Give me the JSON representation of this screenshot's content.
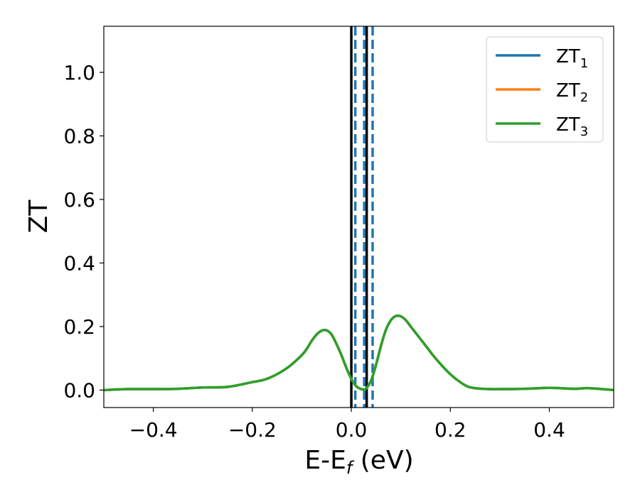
{
  "chart_data": {
    "type": "line",
    "xlabel": "E-E_f (eV)",
    "xlabel_parts": {
      "main": "E-E",
      "sub": "f",
      "tail": " (eV)"
    },
    "ylabel": "ZT",
    "xlim": [
      -0.5,
      0.53
    ],
    "ylim": [
      -0.055,
      1.145
    ],
    "xticks": [
      -0.4,
      -0.2,
      0.0,
      0.2,
      0.4
    ],
    "xtick_labels": [
      "−0.4",
      "−0.2",
      "0.0",
      "0.2",
      "0.4"
    ],
    "yticks": [
      0.0,
      0.2,
      0.4,
      0.6,
      0.8,
      1.0
    ],
    "ytick_labels": [
      "0.0",
      "0.2",
      "0.4",
      "0.6",
      "0.8",
      "1.0"
    ],
    "grid": false,
    "legend_position": "top-right",
    "series": [
      {
        "name": "ZT_1",
        "label_main": "ZT",
        "label_sub": "1",
        "color": "#1f77b4",
        "x": [
          -0.5,
          -0.45,
          -0.4,
          -0.35,
          -0.3,
          -0.25,
          -0.2,
          -0.175,
          -0.15,
          -0.125,
          -0.1,
          -0.09,
          -0.08,
          -0.07,
          -0.06,
          -0.05,
          -0.04,
          -0.03,
          -0.02,
          -0.01,
          0.0,
          0.01,
          0.02,
          0.025,
          0.03,
          0.04,
          0.05,
          0.06,
          0.07,
          0.08,
          0.09,
          0.1,
          0.11,
          0.12,
          0.13,
          0.15,
          0.17,
          0.2,
          0.23,
          0.25,
          0.28,
          0.3,
          0.35,
          0.4,
          0.45,
          0.48,
          0.53
        ],
        "y": [
          0.0,
          0.003,
          0.003,
          0.004,
          0.008,
          0.01,
          0.025,
          0.033,
          0.05,
          0.075,
          0.11,
          0.13,
          0.155,
          0.175,
          0.187,
          0.188,
          0.175,
          0.145,
          0.11,
          0.07,
          0.035,
          0.012,
          0.003,
          0.002,
          0.005,
          0.03,
          0.08,
          0.14,
          0.19,
          0.22,
          0.233,
          0.232,
          0.22,
          0.2,
          0.18,
          0.14,
          0.1,
          0.05,
          0.015,
          0.006,
          0.003,
          0.003,
          0.004,
          0.007,
          0.004,
          0.006,
          0.0
        ]
      },
      {
        "name": "ZT_2",
        "label_main": "ZT",
        "label_sub": "2",
        "color": "#ff7f0e",
        "x": [
          -0.5,
          -0.45,
          -0.4,
          -0.35,
          -0.3,
          -0.25,
          -0.2,
          -0.175,
          -0.15,
          -0.125,
          -0.1,
          -0.09,
          -0.08,
          -0.07,
          -0.06,
          -0.05,
          -0.04,
          -0.03,
          -0.02,
          -0.01,
          0.0,
          0.01,
          0.02,
          0.025,
          0.03,
          0.04,
          0.05,
          0.06,
          0.07,
          0.08,
          0.09,
          0.1,
          0.11,
          0.12,
          0.13,
          0.15,
          0.17,
          0.2,
          0.23,
          0.25,
          0.28,
          0.3,
          0.35,
          0.4,
          0.45,
          0.48,
          0.53
        ],
        "y": [
          0.0,
          0.003,
          0.003,
          0.004,
          0.008,
          0.01,
          0.025,
          0.033,
          0.05,
          0.075,
          0.11,
          0.13,
          0.155,
          0.175,
          0.187,
          0.188,
          0.175,
          0.145,
          0.11,
          0.07,
          0.035,
          0.012,
          0.003,
          0.002,
          0.005,
          0.03,
          0.08,
          0.14,
          0.19,
          0.22,
          0.233,
          0.232,
          0.22,
          0.2,
          0.18,
          0.14,
          0.1,
          0.05,
          0.015,
          0.006,
          0.003,
          0.003,
          0.004,
          0.007,
          0.004,
          0.006,
          0.0
        ]
      },
      {
        "name": "ZT_3",
        "label_main": "ZT",
        "label_sub": "3",
        "color": "#2ca02c",
        "x": [
          -0.5,
          -0.45,
          -0.4,
          -0.35,
          -0.3,
          -0.25,
          -0.2,
          -0.175,
          -0.15,
          -0.125,
          -0.1,
          -0.09,
          -0.08,
          -0.07,
          -0.06,
          -0.05,
          -0.04,
          -0.03,
          -0.02,
          -0.01,
          0.0,
          0.01,
          0.02,
          0.025,
          0.03,
          0.04,
          0.05,
          0.06,
          0.07,
          0.08,
          0.09,
          0.1,
          0.11,
          0.12,
          0.13,
          0.15,
          0.17,
          0.2,
          0.23,
          0.25,
          0.28,
          0.3,
          0.35,
          0.4,
          0.45,
          0.48,
          0.53
        ],
        "y": [
          0.0,
          0.003,
          0.003,
          0.004,
          0.008,
          0.01,
          0.025,
          0.033,
          0.05,
          0.075,
          0.11,
          0.13,
          0.155,
          0.175,
          0.187,
          0.188,
          0.175,
          0.145,
          0.11,
          0.07,
          0.035,
          0.012,
          0.003,
          0.002,
          0.005,
          0.03,
          0.08,
          0.14,
          0.19,
          0.22,
          0.233,
          0.232,
          0.22,
          0.2,
          0.18,
          0.14,
          0.1,
          0.05,
          0.015,
          0.006,
          0.003,
          0.003,
          0.004,
          0.007,
          0.004,
          0.006,
          0.0
        ]
      }
    ],
    "vertical_lines": [
      {
        "x": 0.0,
        "color": "#000000",
        "style": "solid"
      },
      {
        "x": 0.031,
        "color": "#000000",
        "style": "solid"
      },
      {
        "x": 0.008,
        "color": "#1f77b4",
        "style": "dashed"
      },
      {
        "x": 0.026,
        "color": "#1f77b4",
        "style": "dashed"
      },
      {
        "x": 0.043,
        "color": "#1f77b4",
        "style": "dashed"
      }
    ]
  }
}
